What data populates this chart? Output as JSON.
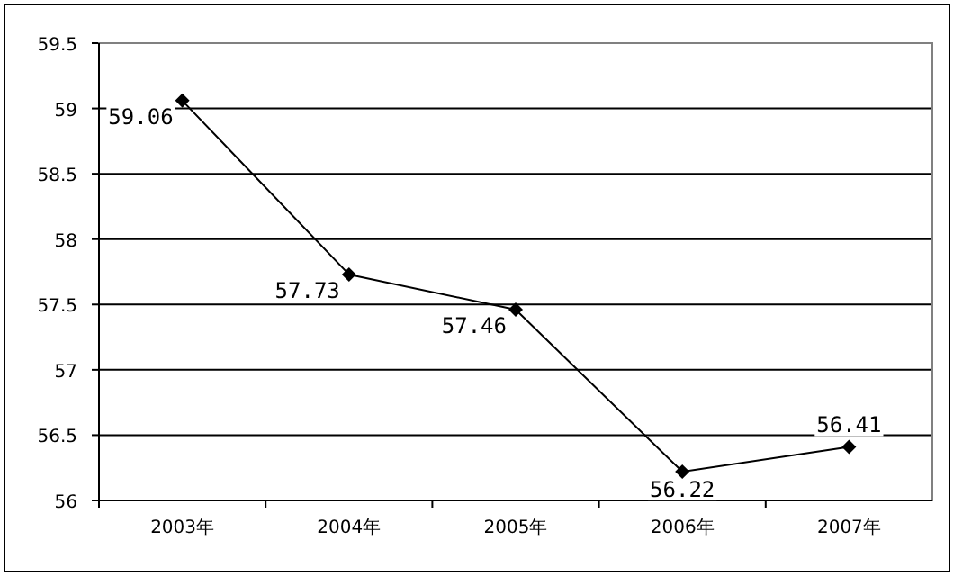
{
  "chart_data": {
    "type": "line",
    "categories": [
      "2003年",
      "2004年",
      "2005年",
      "2006年",
      "2007年"
    ],
    "series": [
      {
        "color": "#000000",
        "values": [
          59.06,
          57.73,
          57.46,
          56.22,
          56.41
        ]
      }
    ],
    "ylim": [
      56,
      59.5
    ],
    "yticks": [
      56,
      56.5,
      57,
      57.5,
      58,
      58.5,
      59,
      59.5
    ],
    "grid": "y",
    "marker": "diamond",
    "line_style": "solid",
    "data_labels": true
  }
}
